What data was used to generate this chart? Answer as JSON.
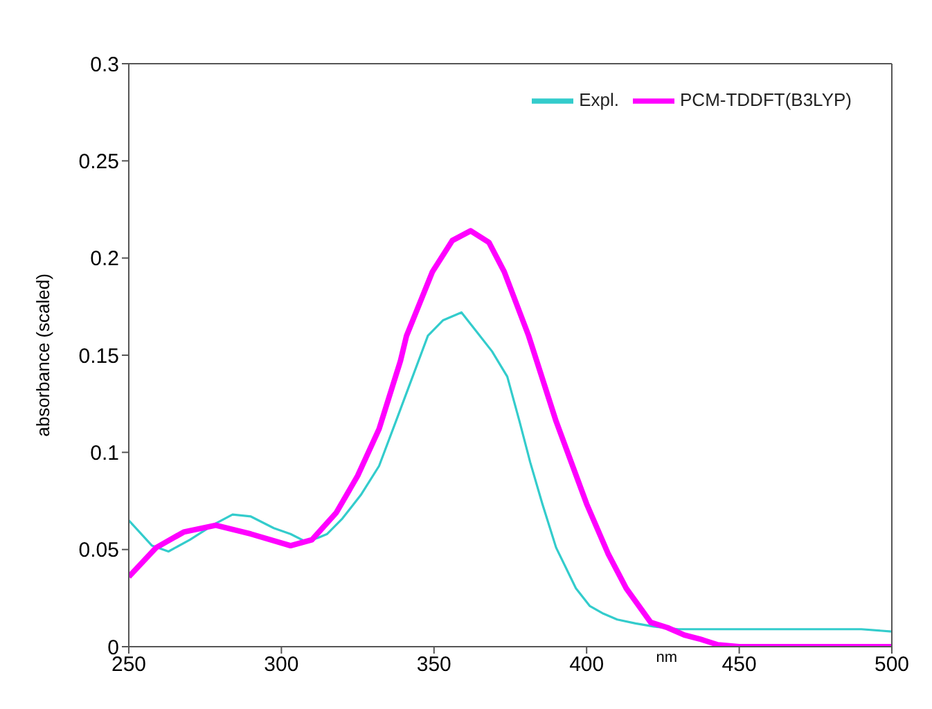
{
  "chart_data": {
    "type": "line",
    "xlabel": "nm",
    "ylabel": "absorbance (scaled)",
    "xlim": [
      250,
      500
    ],
    "xticks": [
      250,
      300,
      350,
      400,
      450,
      500
    ],
    "ylim": [
      0,
      0.3
    ],
    "yticks": [
      0,
      0.05,
      0.1,
      0.15,
      0.2,
      0.25,
      0.3
    ],
    "grid": false,
    "legend": "top right",
    "marker": "none",
    "line_style": "solid",
    "series": [
      {
        "name": "Expl.",
        "color": "#33cccc",
        "x": [
          250,
          257.6,
          263,
          270,
          278,
          284,
          290,
          297.5,
          303,
          308,
          312,
          315,
          320,
          326,
          332,
          338,
          343,
          348,
          353,
          359,
          364,
          369,
          374,
          378,
          381.5,
          385.5,
          390,
          396.5,
          401,
          405.5,
          410,
          416,
          422,
          430,
          440,
          450,
          460,
          470,
          480,
          490,
          500
        ],
        "values": [
          0.065,
          0.052,
          0.049,
          0.055,
          0.063,
          0.068,
          0.067,
          0.061,
          0.058,
          0.054,
          0.056,
          0.058,
          0.066,
          0.078,
          0.093,
          0.118,
          0.139,
          0.16,
          0.168,
          0.172,
          0.162,
          0.152,
          0.139,
          0.116,
          0.095,
          0.0735,
          0.051,
          0.03,
          0.021,
          0.017,
          0.014,
          0.012,
          0.0104,
          0.009,
          0.009,
          0.009,
          0.009,
          0.009,
          0.009,
          0.009,
          0.0078
        ]
      },
      {
        "name": "PCM-TDDFT(B3LYP)",
        "color": "#ff00ff",
        "x": [
          250,
          259,
          268,
          278.5,
          290,
          303,
          310,
          318,
          325,
          332,
          339,
          341,
          349.5,
          356,
          362,
          368,
          373,
          381,
          390,
          400,
          407,
          413,
          421,
          426.5,
          432,
          437,
          443,
          450,
          460,
          480,
          500
        ],
        "values": [
          0.036,
          0.051,
          0.059,
          0.0625,
          0.058,
          0.052,
          0.055,
          0.069,
          0.088,
          0.112,
          0.147,
          0.16,
          0.193,
          0.209,
          0.214,
          0.208,
          0.193,
          0.16,
          0.116,
          0.0735,
          0.048,
          0.03,
          0.0125,
          0.0098,
          0.006,
          0.004,
          0.001,
          0,
          0,
          0,
          0
        ]
      }
    ]
  }
}
